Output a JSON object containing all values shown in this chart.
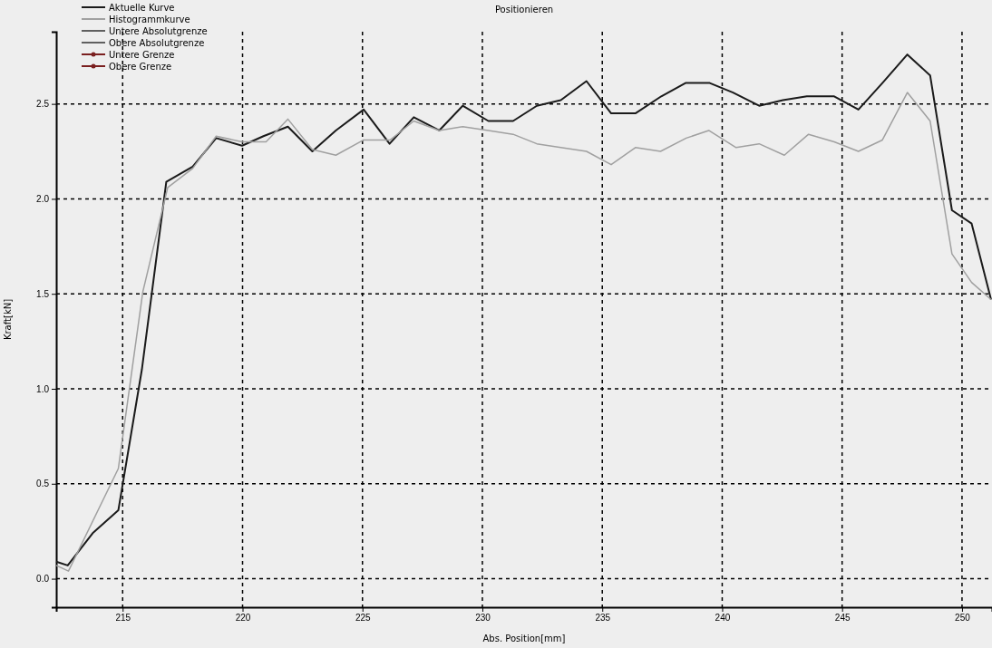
{
  "chart_data": {
    "type": "line",
    "title": "Positionieren",
    "xlabel": "Abs. Position[mm]",
    "ylabel": "Kraft[kN]",
    "xlim": [
      212.23,
      251.25
    ],
    "xticks": [
      215,
      220,
      225,
      230,
      235,
      240,
      245,
      250
    ],
    "ylim": [
      -0.15,
      2.88
    ],
    "yticks": [
      {
        "value": 0,
        "label": "0.0"
      },
      {
        "value": 0.5,
        "label": "0.5"
      },
      {
        "value": 1,
        "label": "1.0"
      },
      {
        "value": 1.5,
        "label": "1.5"
      },
      {
        "value": 2,
        "label": "2.0"
      },
      {
        "value": 2.5,
        "label": "2.5"
      }
    ],
    "grid": true,
    "legend": "top left",
    "line_style": "solid",
    "series": [
      {
        "name": "Aktuelle Kurve",
        "color": "#1a1a1a",
        "x": [
          212.23,
          212.71,
          213.75,
          214.82,
          215.8,
          216.82,
          217.92,
          218.9,
          219.98,
          220.87,
          221.89,
          222.91,
          223.89,
          225.05,
          226.13,
          227.14,
          228.2,
          229.18,
          230.25,
          231.28,
          232.27,
          233.27,
          234.34,
          235.37,
          236.38,
          237.46,
          238.47,
          239.48,
          240.45,
          241.54,
          242.53,
          243.53,
          244.67,
          245.68,
          246.68,
          247.72,
          248.67,
          249.58,
          250.4,
          251.21
        ],
        "values": [
          0.09,
          0.07,
          0.24,
          0.36,
          1.1,
          2.09,
          2.17,
          2.32,
          2.28,
          2.33,
          2.38,
          2.25,
          2.36,
          2.47,
          2.29,
          2.43,
          2.36,
          2.49,
          2.41,
          2.41,
          2.49,
          2.52,
          2.62,
          2.45,
          2.45,
          2.54,
          2.61,
          2.61,
          2.56,
          2.49,
          2.52,
          2.54,
          2.54,
          2.47,
          2.61,
          2.76,
          2.65,
          1.94,
          1.87,
          1.47
        ]
      },
      {
        "name": "Histogrammkurve",
        "color": "#a0a0a0",
        "x": [
          212.23,
          212.74,
          214.82,
          215.84,
          216.88,
          217.92,
          218.9,
          219.98,
          220.98,
          221.89,
          222.91,
          223.89,
          225.05,
          226.16,
          227.14,
          228.2,
          229.18,
          230.25,
          231.28,
          232.27,
          233.27,
          234.34,
          235.37,
          236.38,
          237.43,
          238.5,
          239.44,
          240.58,
          241.54,
          242.59,
          243.6,
          244.67,
          245.68,
          246.68,
          247.72,
          248.67,
          249.58,
          250.4,
          251.21
        ],
        "values": [
          0.07,
          0.04,
          0.58,
          1.51,
          2.06,
          2.16,
          2.33,
          2.3,
          2.3,
          2.42,
          2.26,
          2.23,
          2.31,
          2.31,
          2.41,
          2.36,
          2.38,
          2.36,
          2.34,
          2.29,
          2.27,
          2.25,
          2.18,
          2.27,
          2.25,
          2.32,
          2.36,
          2.27,
          2.29,
          2.23,
          2.34,
          2.3,
          2.25,
          2.31,
          2.56,
          2.41,
          1.71,
          1.56,
          1.47
        ]
      },
      {
        "name": "Untere Absolutgrenze",
        "color": "#606060"
      },
      {
        "name": "Obere Absolutgrenze",
        "color": "#606060"
      },
      {
        "name": "Untere Grenze",
        "color": "#7a1f1f",
        "marker": "circle"
      },
      {
        "name": "Obere Grenze",
        "color": "#7a1f1f",
        "marker": "circle"
      }
    ]
  }
}
